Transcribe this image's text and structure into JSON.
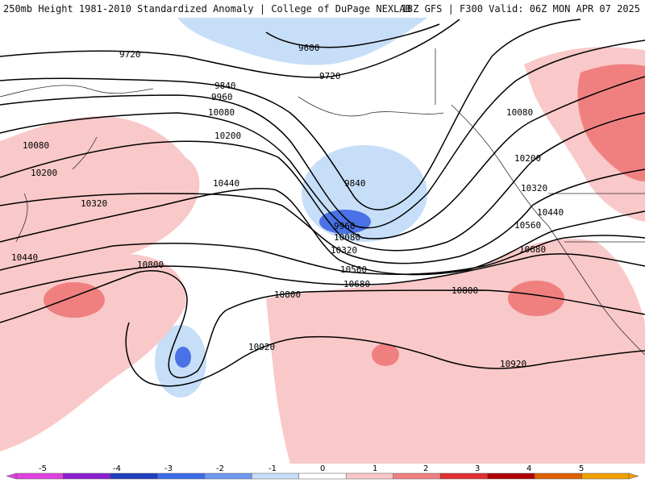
{
  "header": {
    "left_title": "250mb Height 1981-2010 Standardized Anomaly | College of DuPage NEXLAB",
    "right_title": "18Z GFS | F300 Valid: 06Z MON APR 07 2025"
  },
  "contour_labels": [
    "9600",
    "9720",
    "9720",
    "9840",
    "9960",
    "10080",
    "10080",
    "10200",
    "10200",
    "10200",
    "10080",
    "10320",
    "10320",
    "10440",
    "10440",
    "10440",
    "10560",
    "10560",
    "10680",
    "10680",
    "10800",
    "10800",
    "10800",
    "10920",
    "10920",
    "9840",
    "9960",
    "10080",
    "10320"
  ],
  "colorbar": {
    "ticks": [
      "-5",
      "-4",
      "-3",
      "-2",
      "-1",
      "0",
      "1",
      "2",
      "3",
      "4",
      "5"
    ],
    "colors": [
      "#e040e0",
      "#8a1fd0",
      "#1f3fc0",
      "#3b6de8",
      "#6f97f0",
      "#c7def8",
      "#ffffff",
      "#f9c8c8",
      "#f08080",
      "#e03030",
      "#b00000",
      "#e06000",
      "#f0a000"
    ]
  },
  "colors": {
    "positive_light": "#f9c8c8",
    "positive_medium": "#f08080",
    "negative_light": "#c7def8",
    "negative_medium": "#4a72e6",
    "contour": "#000000"
  }
}
